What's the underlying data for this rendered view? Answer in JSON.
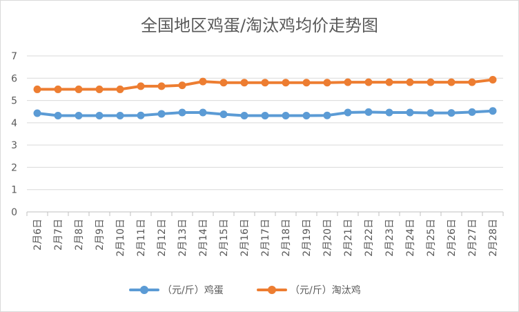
{
  "chart_data": {
    "type": "line",
    "title": "全国地区鸡蛋/淘汰鸡均价走势图",
    "categories": [
      "2月6日",
      "2月7日",
      "2月8日",
      "2月9日",
      "2月10日",
      "2月11日",
      "2月12日",
      "2月13日",
      "2月14日",
      "2月15日",
      "2月16日",
      "2月17日",
      "2月18日",
      "2月19日",
      "2月20日",
      "2月21日",
      "2月22日",
      "2月23日",
      "2月24日",
      "2月25日",
      "2月26日",
      "2月27日",
      "2月28日"
    ],
    "series": [
      {
        "name": "（元/斤）鸡蛋",
        "color": "#5b9bd5",
        "values": [
          4.43,
          4.32,
          4.32,
          4.32,
          4.32,
          4.33,
          4.4,
          4.46,
          4.46,
          4.38,
          4.32,
          4.32,
          4.32,
          4.32,
          4.33,
          4.46,
          4.48,
          4.46,
          4.46,
          4.44,
          4.44,
          4.48,
          4.53
        ]
      },
      {
        "name": "（元/斤）淘汰鸡",
        "color": "#ed7d31",
        "values": [
          5.5,
          5.5,
          5.5,
          5.5,
          5.5,
          5.64,
          5.64,
          5.68,
          5.85,
          5.8,
          5.8,
          5.8,
          5.8,
          5.8,
          5.8,
          5.82,
          5.82,
          5.82,
          5.82,
          5.82,
          5.82,
          5.82,
          5.93
        ]
      }
    ],
    "ylim": [
      0,
      7
    ],
    "yticks": [
      0,
      1,
      2,
      3,
      4,
      5,
      6,
      7
    ],
    "grid": true,
    "legend_position": "bottom"
  }
}
